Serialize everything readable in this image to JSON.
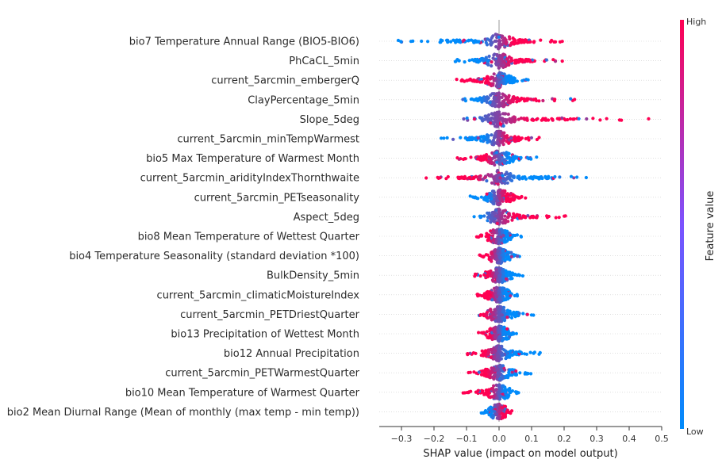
{
  "chart_data": {
    "type": "scatter",
    "subtype": "shap-beeswarm",
    "xlabel": "SHAP value (impact on model output)",
    "xlim": [
      -0.37,
      0.5
    ],
    "xticks": [
      "−0.3",
      "−0.2",
      "−0.1",
      "0.0",
      "0.1",
      "0.2",
      "0.3",
      "0.4",
      "0.5"
    ],
    "xtick_values": [
      -0.3,
      -0.2,
      -0.1,
      0.0,
      0.1,
      0.2,
      0.3,
      0.4,
      0.5
    ],
    "colorbar": {
      "label": "Feature value",
      "high": "High",
      "low": "Low",
      "low_color": "#008bfb",
      "high_color": "#ff0052"
    },
    "features": [
      {
        "name": "bio7 Temperature Annual Range (BIO5-BIO6)",
        "neg_min": -0.33,
        "neg_max": -0.02,
        "pos_max": 0.2,
        "neg_color": "low",
        "pos_color": "high"
      },
      {
        "name": "PhCaCL_5min",
        "neg_min": -0.14,
        "neg_max": -0.02,
        "pos_max": 0.2,
        "neg_color": "low",
        "pos_color": "high"
      },
      {
        "name": "current_5arcmin_embergerQ",
        "neg_min": -0.17,
        "neg_max": -0.02,
        "pos_max": 0.09,
        "neg_color": "high",
        "pos_color": "low"
      },
      {
        "name": "ClayPercentage_5min",
        "neg_min": -0.13,
        "neg_max": -0.02,
        "pos_max": 0.24,
        "neg_color": "low",
        "pos_color": "high"
      },
      {
        "name": "Slope_5deg",
        "neg_min": -0.11,
        "neg_max": -0.02,
        "pos_max": 0.46,
        "neg_color": "low",
        "pos_color": "high"
      },
      {
        "name": "current_5arcmin_minTempWarmest",
        "neg_min": -0.18,
        "neg_max": -0.02,
        "pos_max": 0.13,
        "neg_color": "low",
        "pos_color": "high"
      },
      {
        "name": "bio5 Max Temperature of Warmest Month",
        "neg_min": -0.13,
        "neg_max": -0.02,
        "pos_max": 0.12,
        "neg_color": "high",
        "pos_color": "low"
      },
      {
        "name": "current_5arcmin_aridityIndexThornthwaite",
        "neg_min": -0.23,
        "neg_max": -0.02,
        "pos_max": 0.3,
        "neg_color": "high",
        "pos_color": "low"
      },
      {
        "name": "current_5arcmin_PETseasonality",
        "neg_min": -0.09,
        "neg_max": -0.02,
        "pos_max": 0.09,
        "neg_color": "low",
        "pos_color": "high"
      },
      {
        "name": "Aspect_5deg",
        "neg_min": -0.08,
        "neg_max": -0.02,
        "pos_max": 0.22,
        "neg_color": "low",
        "pos_color": "high"
      },
      {
        "name": "bio8 Mean Temperature of Wettest Quarter",
        "neg_min": -0.07,
        "neg_max": -0.02,
        "pos_max": 0.07,
        "neg_color": "high",
        "pos_color": "low"
      },
      {
        "name": "bio4 Temperature Seasonality (standard deviation *100)",
        "neg_min": -0.06,
        "neg_max": -0.02,
        "pos_max": 0.07,
        "neg_color": "high",
        "pos_color": "low"
      },
      {
        "name": "BulkDensity_5min",
        "neg_min": -0.08,
        "neg_max": -0.02,
        "pos_max": 0.08,
        "neg_color": "high",
        "pos_color": "low"
      },
      {
        "name": "current_5arcmin_climaticMoistureIndex",
        "neg_min": -0.08,
        "neg_max": -0.02,
        "pos_max": 0.06,
        "neg_color": "high",
        "pos_color": "low"
      },
      {
        "name": "current_5arcmin_PETDriestQuarter",
        "neg_min": -0.07,
        "neg_max": -0.02,
        "pos_max": 0.11,
        "neg_color": "high",
        "pos_color": "low"
      },
      {
        "name": "bio13 Precipitation of Wettest Month",
        "neg_min": -0.07,
        "neg_max": -0.02,
        "pos_max": 0.06,
        "neg_color": "high",
        "pos_color": "low"
      },
      {
        "name": "bio12 Annual Precipitation",
        "neg_min": -0.1,
        "neg_max": -0.02,
        "pos_max": 0.13,
        "neg_color": "high",
        "pos_color": "low"
      },
      {
        "name": "current_5arcmin_PETWarmestQuarter",
        "neg_min": -0.1,
        "neg_max": -0.02,
        "pos_max": 0.1,
        "neg_color": "high",
        "pos_color": "low"
      },
      {
        "name": "bio10 Mean Temperature of Warmest Quarter",
        "neg_min": -0.12,
        "neg_max": -0.02,
        "pos_max": 0.06,
        "neg_color": "high",
        "pos_color": "low"
      },
      {
        "name": "bio2 Mean Diurnal Range (Mean of monthly (max temp - min temp))",
        "neg_min": -0.06,
        "neg_max": -0.02,
        "pos_max": 0.04,
        "neg_color": "low",
        "pos_color": "high"
      }
    ]
  }
}
